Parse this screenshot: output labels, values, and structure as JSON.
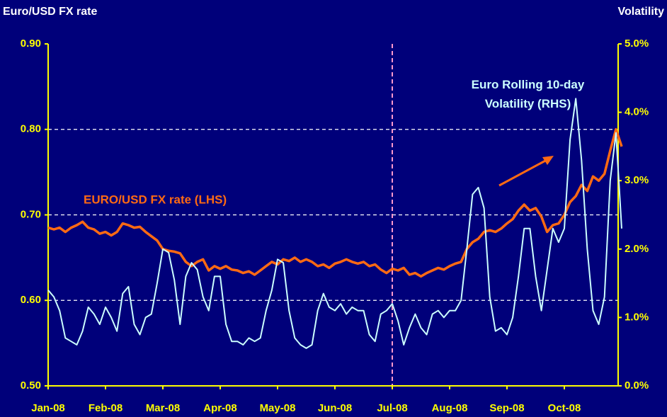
{
  "chart_data": {
    "type": "line",
    "y_label": "Euro/USD FX rate",
    "y2_label": "Volatility",
    "categories": [
      "Jan-08",
      null,
      null,
      null,
      null,
      null,
      null,
      null,
      null,
      null,
      "Feb-08",
      null,
      null,
      null,
      null,
      null,
      null,
      null,
      null,
      null,
      "Mar-08",
      null,
      null,
      null,
      null,
      null,
      null,
      null,
      null,
      null,
      "Apr-08",
      null,
      null,
      null,
      null,
      null,
      null,
      null,
      null,
      null,
      "May-08",
      null,
      null,
      null,
      null,
      null,
      null,
      null,
      null,
      null,
      "Jun-08",
      null,
      null,
      null,
      null,
      null,
      null,
      null,
      null,
      null,
      "Jul-08",
      null,
      null,
      null,
      null,
      null,
      null,
      null,
      null,
      null,
      "Aug-08",
      null,
      null,
      null,
      null,
      null,
      null,
      null,
      null,
      null,
      "Sep-08",
      null,
      null,
      null,
      null,
      null,
      null,
      null,
      null,
      null,
      "Oct-08",
      null,
      null,
      null,
      null,
      null,
      null,
      null,
      null,
      null,
      null
    ],
    "series": [
      {
        "name": "EURO/USD FX rate (LHS)",
        "color": "#ff6a13",
        "axis": "y",
        "values": [
          0.685,
          0.683,
          0.685,
          0.68,
          0.685,
          0.688,
          0.692,
          0.685,
          0.683,
          0.678,
          0.68,
          0.676,
          0.68,
          0.69,
          0.688,
          0.685,
          0.686,
          0.68,
          0.675,
          0.67,
          0.66,
          0.658,
          0.657,
          0.655,
          0.645,
          0.64,
          0.645,
          0.648,
          0.635,
          0.64,
          0.637,
          0.64,
          0.636,
          0.635,
          0.632,
          0.634,
          0.63,
          0.635,
          0.64,
          0.645,
          0.642,
          0.648,
          0.646,
          0.65,
          0.645,
          0.648,
          0.645,
          0.64,
          0.642,
          0.638,
          0.643,
          0.645,
          0.648,
          0.645,
          0.643,
          0.645,
          0.64,
          0.642,
          0.636,
          0.632,
          0.637,
          0.635,
          0.638,
          0.63,
          0.632,
          0.628,
          0.632,
          0.635,
          0.638,
          0.636,
          0.64,
          0.643,
          0.645,
          0.66,
          0.668,
          0.672,
          0.68,
          0.682,
          0.68,
          0.684,
          0.69,
          0.695,
          0.705,
          0.712,
          0.705,
          0.708,
          0.698,
          0.68,
          0.688,
          0.69,
          0.7,
          0.715,
          0.722,
          0.735,
          0.728,
          0.745,
          0.74,
          0.748,
          0.775,
          0.8,
          0.78
        ]
      },
      {
        "name": "Euro Rolling 10-day Volatility (RHS)",
        "color": "#ccffff",
        "axis": "y2",
        "values": [
          1.4,
          1.3,
          1.1,
          0.7,
          0.65,
          0.6,
          0.8,
          1.15,
          1.05,
          0.9,
          1.15,
          1.0,
          0.8,
          1.35,
          1.45,
          0.9,
          0.75,
          1.0,
          1.05,
          1.5,
          2.0,
          1.95,
          1.55,
          0.9,
          1.6,
          1.8,
          1.7,
          1.3,
          1.1,
          1.6,
          1.6,
          0.9,
          0.65,
          0.65,
          0.6,
          0.7,
          0.65,
          0.7,
          1.1,
          1.4,
          1.85,
          1.8,
          1.1,
          0.7,
          0.6,
          0.55,
          0.6,
          1.1,
          1.35,
          1.15,
          1.1,
          1.2,
          1.05,
          1.15,
          1.1,
          1.1,
          0.75,
          0.65,
          1.05,
          1.1,
          1.2,
          0.95,
          0.6,
          0.85,
          1.05,
          0.85,
          0.75,
          1.05,
          1.1,
          1.0,
          1.1,
          1.1,
          1.25,
          2.0,
          2.8,
          2.9,
          2.6,
          1.3,
          0.8,
          0.85,
          0.75,
          1.0,
          1.6,
          2.3,
          2.3,
          1.6,
          1.1,
          1.7,
          2.3,
          2.1,
          2.3,
          3.6,
          4.2,
          3.3,
          2.0,
          1.1,
          0.9,
          1.3,
          3.0,
          3.7,
          2.3
        ]
      }
    ],
    "ylim": [
      0.5,
      0.9
    ],
    "yticks": [
      {
        "value": 0.5,
        "label": "0.50"
      },
      {
        "value": 0.6,
        "label": "0.60"
      },
      {
        "value": 0.7,
        "label": "0.70"
      },
      {
        "value": 0.8,
        "label": "0.80"
      },
      {
        "value": 0.9,
        "label": "0.90"
      }
    ],
    "y2lim": [
      0,
      5
    ],
    "y2ticks": [
      {
        "value": 0,
        "label": "0.0%"
      },
      {
        "value": 1,
        "label": "1.0%"
      },
      {
        "value": 2,
        "label": "2.0%"
      },
      {
        "value": 3,
        "label": "3.0%"
      },
      {
        "value": 4,
        "label": "4.0%"
      },
      {
        "value": 5,
        "label": "5.0%"
      }
    ],
    "grid": true
  }
}
